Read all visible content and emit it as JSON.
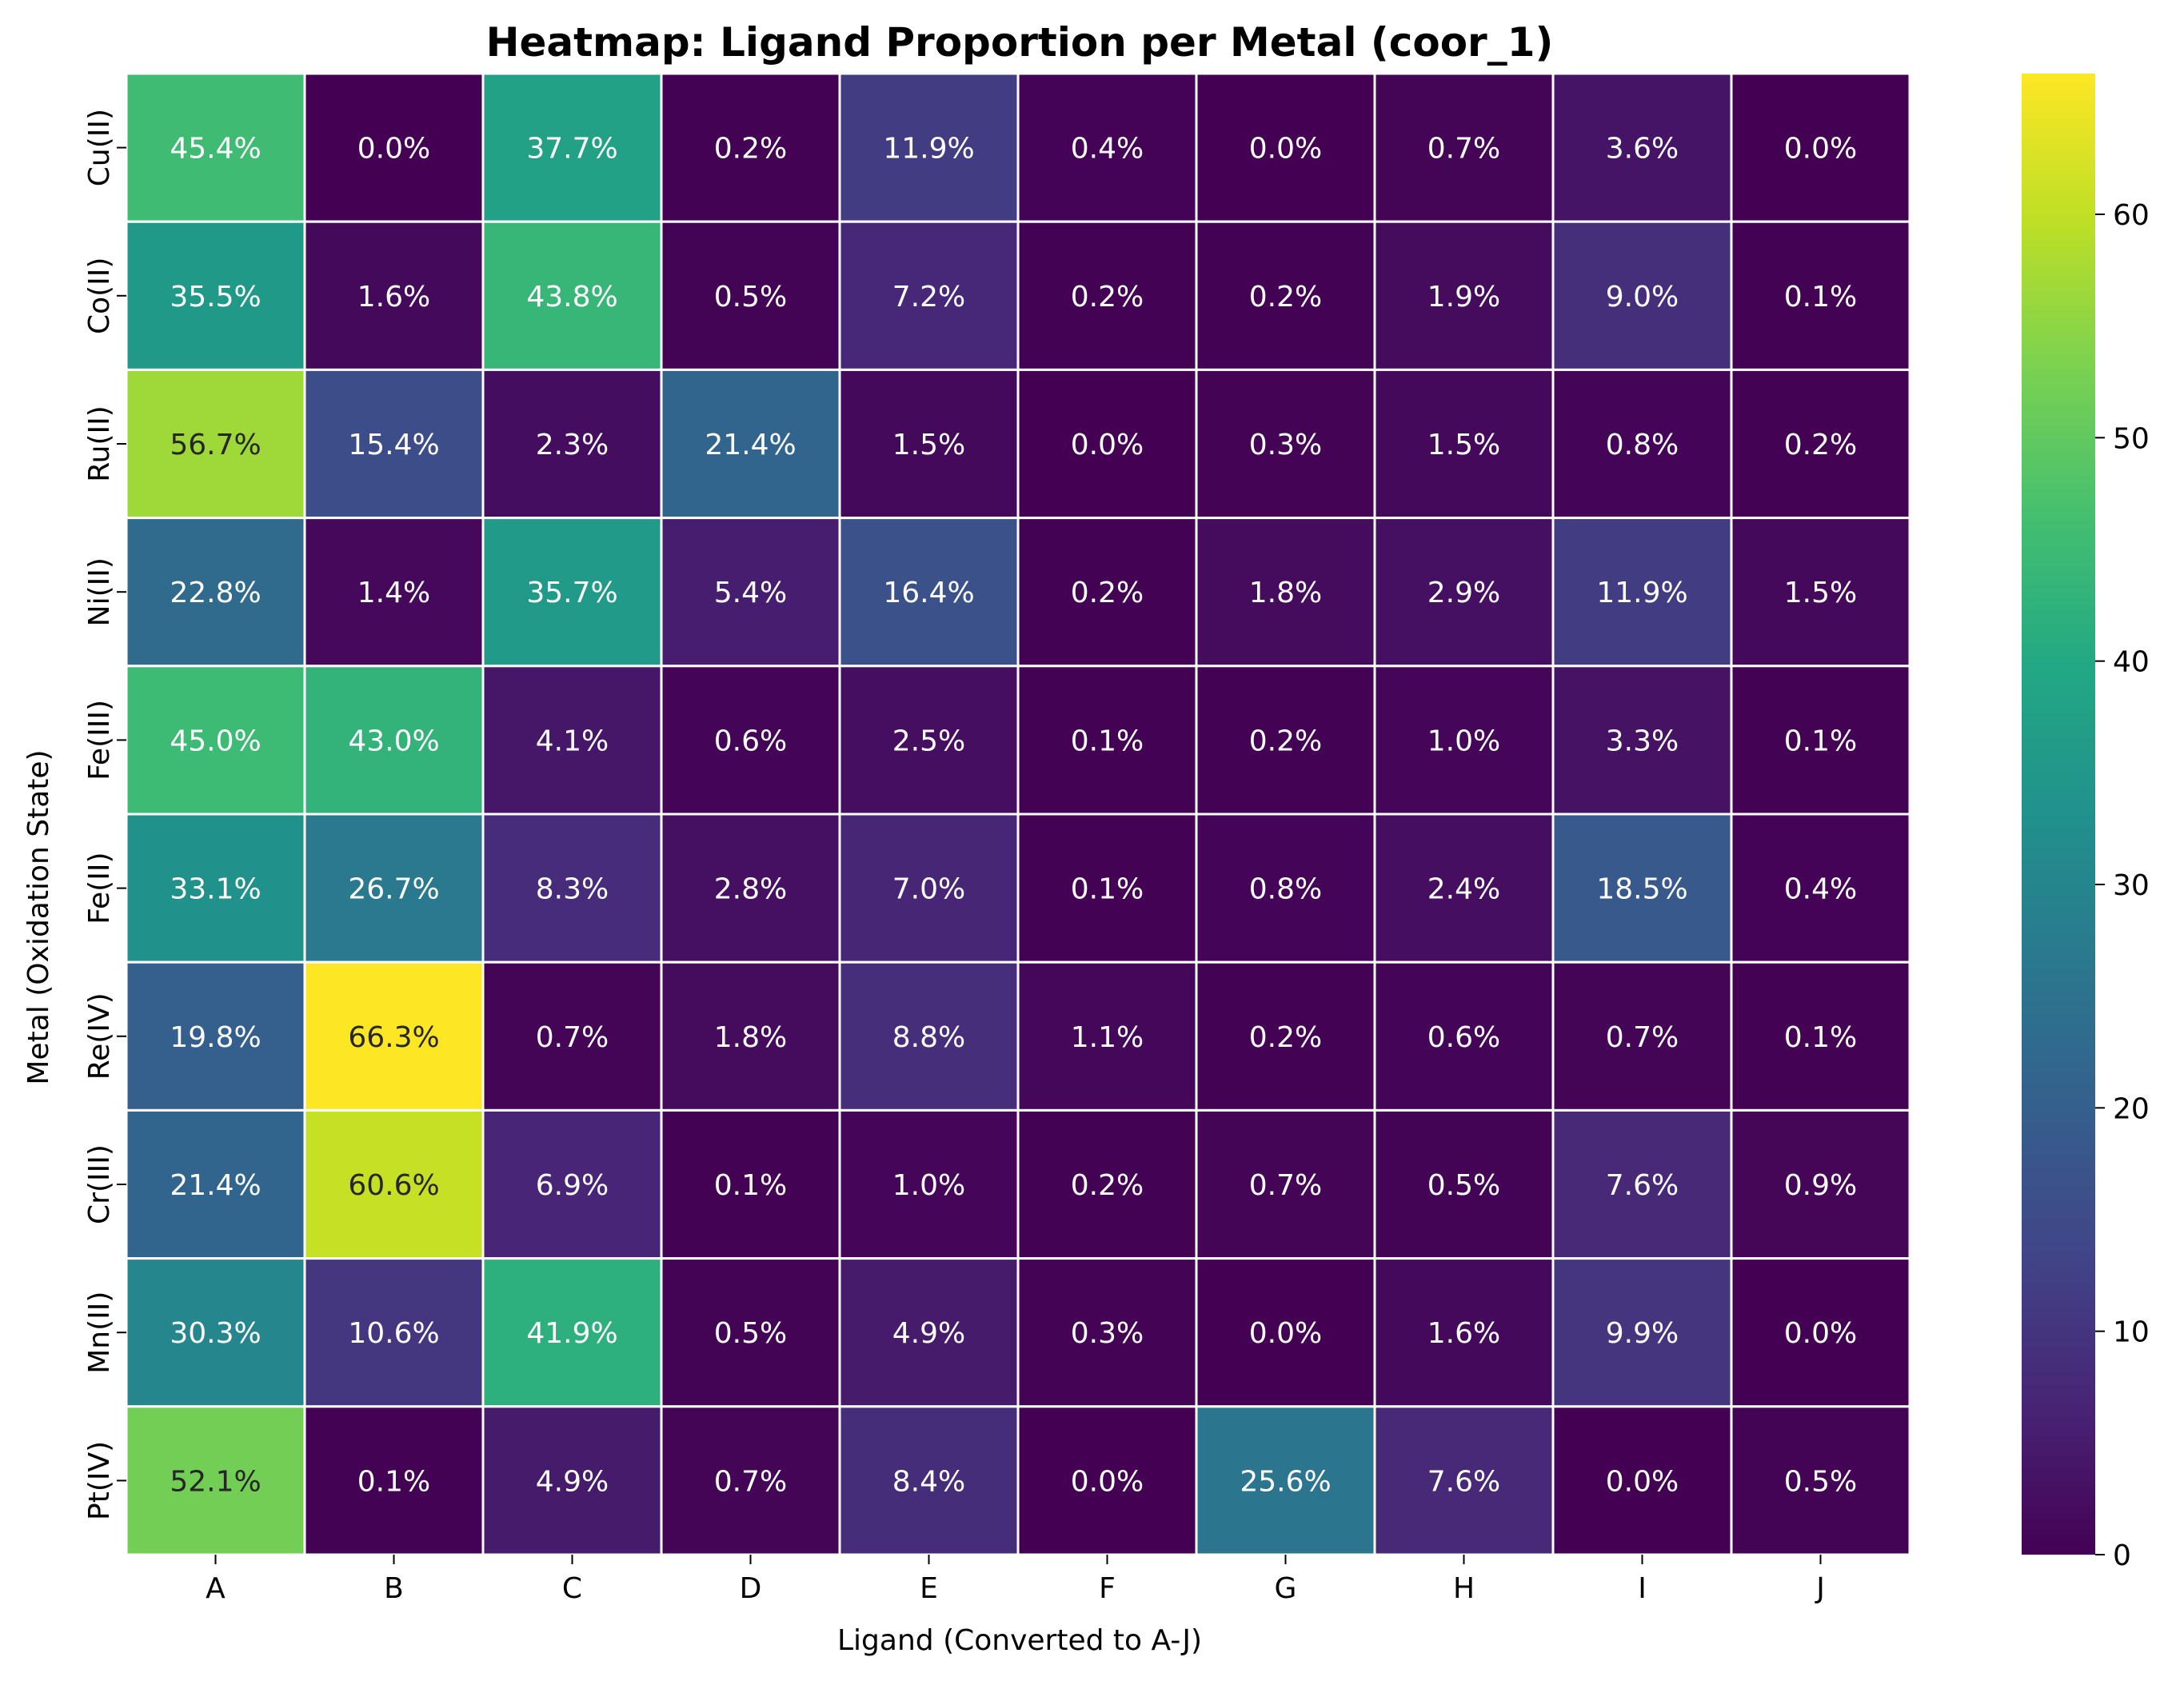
{
  "chart_data": {
    "type": "heatmap",
    "title": "Heatmap: Ligand Proportion per Metal (coor_1)",
    "xlabel": "Ligand (Converted to A-J)",
    "ylabel": "Metal (Oxidation State)",
    "x_categories": [
      "A",
      "B",
      "C",
      "D",
      "E",
      "F",
      "G",
      "H",
      "I",
      "J"
    ],
    "y_categories": [
      "Cu(II)",
      "Co(II)",
      "Ru(II)",
      "Ni(II)",
      "Fe(III)",
      "Fe(II)",
      "Re(IV)",
      "Cr(III)",
      "Mn(II)",
      "Pt(IV)"
    ],
    "values": [
      [
        45.4,
        0.0,
        37.7,
        0.2,
        11.9,
        0.4,
        0.0,
        0.7,
        3.6,
        0.0
      ],
      [
        35.5,
        1.6,
        43.8,
        0.5,
        7.2,
        0.2,
        0.2,
        1.9,
        9.0,
        0.1
      ],
      [
        56.7,
        15.4,
        2.3,
        21.4,
        1.5,
        0.0,
        0.3,
        1.5,
        0.8,
        0.2
      ],
      [
        22.8,
        1.4,
        35.7,
        5.4,
        16.4,
        0.2,
        1.8,
        2.9,
        11.9,
        1.5
      ],
      [
        45.0,
        43.0,
        4.1,
        0.6,
        2.5,
        0.1,
        0.2,
        1.0,
        3.3,
        0.1
      ],
      [
        33.1,
        26.7,
        8.3,
        2.8,
        7.0,
        0.1,
        0.8,
        2.4,
        18.5,
        0.4
      ],
      [
        19.8,
        66.3,
        0.7,
        1.8,
        8.8,
        1.1,
        0.2,
        0.6,
        0.7,
        0.1
      ],
      [
        21.4,
        60.6,
        6.9,
        0.1,
        1.0,
        0.2,
        0.7,
        0.5,
        7.6,
        0.9
      ],
      [
        30.3,
        10.6,
        41.9,
        0.5,
        4.9,
        0.3,
        0.0,
        1.6,
        9.9,
        0.0
      ],
      [
        52.1,
        0.1,
        4.9,
        0.7,
        8.4,
        0.0,
        25.6,
        7.6,
        0.0,
        0.5
      ]
    ],
    "value_format": "percent_1dp",
    "colormap": "viridis",
    "color_range": [
      0,
      66.3
    ],
    "colorbar_ticks": [
      0,
      10,
      20,
      30,
      40,
      50,
      60
    ],
    "cell_border_color": "#ffffff",
    "grid": false,
    "legend": "colorbar-right"
  }
}
